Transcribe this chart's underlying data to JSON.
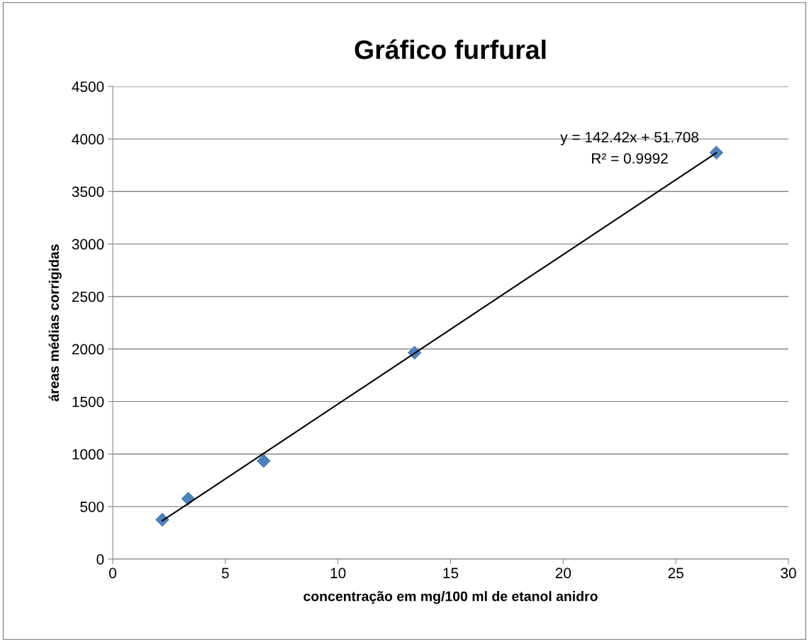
{
  "chart_data": {
    "type": "scatter",
    "title": "Gráfico furfural",
    "xlabel": "concentração em mg/100 ml de etanol anidro",
    "ylabel": "áreas médias corrigidas",
    "x": [
      2.2,
      3.35,
      6.7,
      13.4,
      26.8
    ],
    "series": [
      {
        "color": "#4f81bd",
        "marker": "diamond",
        "values": [
          375,
          575,
          935,
          1965,
          3870
        ]
      },
      {
        "type": "line",
        "color": "#000000",
        "marker": "none",
        "line_style": "solid",
        "x": [
          2.2,
          26.8
        ],
        "values": [
          365,
          3868
        ]
      }
    ],
    "annotations": [
      "y = 142.42x + 51.708",
      "R² = 0.9992"
    ],
    "xlim": [
      0,
      30
    ],
    "xticks": [
      0,
      5,
      10,
      15,
      20,
      25,
      30
    ],
    "ylim": [
      0,
      4500
    ],
    "yticks": [
      0,
      500,
      1000,
      1500,
      2000,
      2500,
      3000,
      3500,
      4000,
      4500
    ],
    "grid": "y",
    "legend": false
  }
}
